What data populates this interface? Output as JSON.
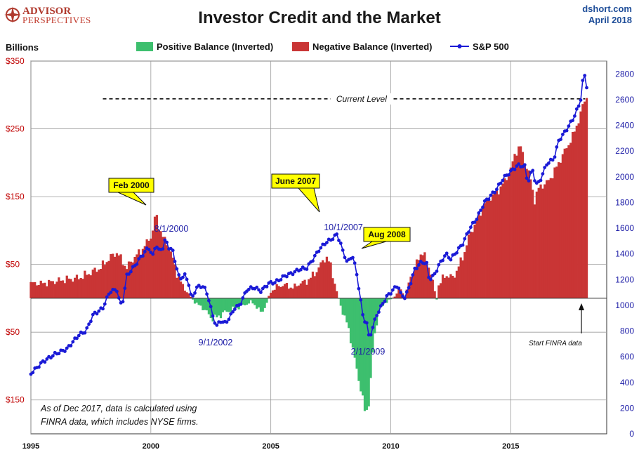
{
  "header": {
    "title": "Investor Credit and the Market",
    "source": "dshort.com",
    "date": "April 2018",
    "logo_line1": "ADVISOR",
    "logo_line2": "PERSPECTIVES"
  },
  "chart_data": {
    "type": "bar",
    "title": "Investor Credit and the Market",
    "ylabel_left": "Billions",
    "legend": [
      {
        "label": "Positive Balance (Inverted)",
        "color": "#3dbf6e",
        "marker": "box"
      },
      {
        "label": "Negative Balance (Inverted)",
        "color": "#c93535",
        "marker": "box"
      },
      {
        "label": "S&P 500",
        "color": "#1a1ad6",
        "marker": "line-dot"
      }
    ],
    "left_axis": {
      "ticks": [
        {
          "value": 350,
          "label": "$350"
        },
        {
          "value": 250,
          "label": "$250"
        },
        {
          "value": 150,
          "label": "$150"
        },
        {
          "value": 50,
          "label": "$50"
        },
        {
          "value": -50,
          "label": "$50"
        },
        {
          "value": -150,
          "label": "$150"
        }
      ],
      "ylim": [
        -200,
        350
      ]
    },
    "right_axis": {
      "ticks": [
        0,
        200,
        400,
        600,
        800,
        1000,
        1200,
        1400,
        1600,
        1800,
        2000,
        2200,
        2400,
        2600,
        2800
      ],
      "ylim": [
        0,
        2900
      ]
    },
    "x_axis": {
      "ticks": [
        {
          "value": 1995,
          "label": "1995"
        },
        {
          "value": 2000,
          "label": "2000"
        },
        {
          "value": 2005,
          "label": "2005"
        },
        {
          "value": 2010,
          "label": "2010"
        },
        {
          "value": 2015,
          "label": "2015"
        }
      ],
      "xlim": [
        1995,
        2019
      ]
    },
    "grid": true,
    "credit_balance_anchors": [
      [
        1995.0,
        22
      ],
      [
        1995.5,
        22
      ],
      [
        1996.0,
        25
      ],
      [
        1996.5,
        28
      ],
      [
        1997.0,
        30
      ],
      [
        1997.5,
        38
      ],
      [
        1997.9,
        45
      ],
      [
        1998.3,
        60
      ],
      [
        1998.6,
        68
      ],
      [
        1998.8,
        55
      ],
      [
        1999.0,
        45
      ],
      [
        1999.3,
        60
      ],
      [
        1999.6,
        70
      ],
      [
        1999.9,
        85
      ],
      [
        2000.1,
        100
      ],
      [
        2000.2,
        128
      ],
      [
        2000.3,
        110
      ],
      [
        2000.5,
        90
      ],
      [
        2000.7,
        80
      ],
      [
        2000.9,
        60
      ],
      [
        2001.1,
        35
      ],
      [
        2001.3,
        20
      ],
      [
        2001.5,
        10
      ],
      [
        2001.7,
        0
      ],
      [
        2001.9,
        -8
      ],
      [
        2002.2,
        -15
      ],
      [
        2002.5,
        -28
      ],
      [
        2002.7,
        -30
      ],
      [
        2003.0,
        -22
      ],
      [
        2003.3,
        -18
      ],
      [
        2003.6,
        -14
      ],
      [
        2003.9,
        -10
      ],
      [
        2004.2,
        -5
      ],
      [
        2004.4,
        -12
      ],
      [
        2004.6,
        -22
      ],
      [
        2004.8,
        -10
      ],
      [
        2005.0,
        10
      ],
      [
        2005.3,
        18
      ],
      [
        2005.6,
        20
      ],
      [
        2005.9,
        15
      ],
      [
        2006.2,
        22
      ],
      [
        2006.5,
        25
      ],
      [
        2006.8,
        35
      ],
      [
        2007.0,
        45
      ],
      [
        2007.3,
        62
      ],
      [
        2007.5,
        48
      ],
      [
        2007.8,
        2
      ],
      [
        2008.0,
        -20
      ],
      [
        2008.2,
        -40
      ],
      [
        2008.4,
        -70
      ],
      [
        2008.6,
        -110
      ],
      [
        2008.8,
        -140
      ],
      [
        2008.95,
        -175
      ],
      [
        2009.1,
        -150
      ],
      [
        2009.3,
        -60
      ],
      [
        2009.5,
        -20
      ],
      [
        2009.8,
        -5
      ],
      [
        2010.0,
        -2
      ],
      [
        2010.2,
        5
      ],
      [
        2010.4,
        15
      ],
      [
        2010.6,
        0
      ],
      [
        2010.8,
        30
      ],
      [
        2011.0,
        45
      ],
      [
        2011.3,
        70
      ],
      [
        2011.5,
        55
      ],
      [
        2011.7,
        35
      ],
      [
        2011.9,
        -5
      ],
      [
        2012.0,
        20
      ],
      [
        2012.3,
        35
      ],
      [
        2012.6,
        30
      ],
      [
        2012.8,
        45
      ],
      [
        2013.0,
        60
      ],
      [
        2013.3,
        95
      ],
      [
        2013.6,
        115
      ],
      [
        2013.9,
        140
      ],
      [
        2014.2,
        150
      ],
      [
        2014.5,
        160
      ],
      [
        2014.8,
        175
      ],
      [
        2015.0,
        190
      ],
      [
        2015.2,
        215
      ],
      [
        2015.4,
        225
      ],
      [
        2015.6,
        200
      ],
      [
        2015.8,
        180
      ],
      [
        2016.0,
        145
      ],
      [
        2016.2,
        165
      ],
      [
        2016.5,
        170
      ],
      [
        2016.8,
        185
      ],
      [
        2017.0,
        200
      ],
      [
        2017.3,
        220
      ],
      [
        2017.6,
        240
      ],
      [
        2017.9,
        270
      ],
      [
        2018.05,
        290
      ],
      [
        2018.2,
        300
      ]
    ],
    "sp500_anchors": [
      [
        1995.0,
        470
      ],
      [
        1995.5,
        560
      ],
      [
        1996.0,
        620
      ],
      [
        1996.5,
        660
      ],
      [
        1997.0,
        770
      ],
      [
        1997.3,
        800
      ],
      [
        1997.6,
        930
      ],
      [
        1997.8,
        950
      ],
      [
        1998.0,
        980
      ],
      [
        1998.3,
        1110
      ],
      [
        1998.6,
        1120
      ],
      [
        1998.7,
        1020
      ],
      [
        1998.8,
        1000
      ],
      [
        1999.0,
        1230
      ],
      [
        1999.3,
        1300
      ],
      [
        1999.6,
        1380
      ],
      [
        1999.9,
        1450
      ],
      [
        2000.1,
        1380
      ],
      [
        2000.2,
        1480
      ],
      [
        2000.35,
        1420
      ],
      [
        2000.5,
        1450
      ],
      [
        2000.6,
        1510
      ],
      [
        2000.75,
        1450
      ],
      [
        2000.9,
        1430
      ],
      [
        2001.0,
        1350
      ],
      [
        2001.2,
        1200
      ],
      [
        2001.4,
        1240
      ],
      [
        2001.6,
        1160
      ],
      [
        2001.7,
        1040
      ],
      [
        2001.9,
        1140
      ],
      [
        2002.2,
        1150
      ],
      [
        2002.4,
        1060
      ],
      [
        2002.6,
        900
      ],
      [
        2002.75,
        840
      ],
      [
        2002.9,
        880
      ],
      [
        2003.1,
        860
      ],
      [
        2003.3,
        910
      ],
      [
        2003.5,
        980
      ],
      [
        2003.7,
        1000
      ],
      [
        2004.0,
        1120
      ],
      [
        2004.3,
        1140
      ],
      [
        2004.6,
        1110
      ],
      [
        2004.9,
        1170
      ],
      [
        2005.2,
        1180
      ],
      [
        2005.6,
        1230
      ],
      [
        2005.9,
        1250
      ],
      [
        2006.2,
        1280
      ],
      [
        2006.5,
        1290
      ],
      [
        2006.8,
        1370
      ],
      [
        2007.0,
        1430
      ],
      [
        2007.3,
        1490
      ],
      [
        2007.5,
        1510
      ],
      [
        2007.75,
        1550
      ],
      [
        2007.9,
        1490
      ],
      [
        2008.0,
        1420
      ],
      [
        2008.2,
        1330
      ],
      [
        2008.4,
        1390
      ],
      [
        2008.55,
        1280
      ],
      [
        2008.7,
        1100
      ],
      [
        2008.85,
        900
      ],
      [
        2009.0,
        860
      ],
      [
        2009.1,
        740
      ],
      [
        2009.2,
        800
      ],
      [
        2009.4,
        920
      ],
      [
        2009.6,
        990
      ],
      [
        2009.8,
        1060
      ],
      [
        2010.0,
        1100
      ],
      [
        2010.3,
        1160
      ],
      [
        2010.4,
        1090
      ],
      [
        2010.6,
        1060
      ],
      [
        2010.8,
        1160
      ],
      [
        2011.0,
        1280
      ],
      [
        2011.3,
        1340
      ],
      [
        2011.5,
        1320
      ],
      [
        2011.6,
        1200
      ],
      [
        2011.8,
        1230
      ],
      [
        2012.0,
        1310
      ],
      [
        2012.3,
        1400
      ],
      [
        2012.5,
        1360
      ],
      [
        2012.8,
        1430
      ],
      [
        2013.0,
        1480
      ],
      [
        2013.3,
        1600
      ],
      [
        2013.6,
        1680
      ],
      [
        2013.9,
        1800
      ],
      [
        2014.1,
        1840
      ],
      [
        2014.4,
        1900
      ],
      [
        2014.7,
        1990
      ],
      [
        2015.0,
        2040
      ],
      [
        2015.3,
        2090
      ],
      [
        2015.6,
        2080
      ],
      [
        2015.7,
        1950
      ],
      [
        2015.9,
        2060
      ],
      [
        2016.05,
        1940
      ],
      [
        2016.2,
        1960
      ],
      [
        2016.5,
        2100
      ],
      [
        2016.8,
        2140
      ],
      [
        2017.0,
        2280
      ],
      [
        2017.3,
        2360
      ],
      [
        2017.6,
        2450
      ],
      [
        2017.9,
        2580
      ],
      [
        2018.05,
        2820
      ],
      [
        2018.15,
        2710
      ],
      [
        2018.22,
        2690
      ]
    ],
    "current_level": {
      "label": "Current Level",
      "value": 2606,
      "x_start": 1998,
      "x_end": 2018.1
    },
    "callouts": [
      {
        "label": "Feb 2000"
      },
      {
        "label": "June 2007"
      },
      {
        "label": "Aug 2008"
      }
    ],
    "point_labels": [
      {
        "label": "8/1/2000"
      },
      {
        "label": "10/1/2007"
      },
      {
        "label": "9/1/2002"
      },
      {
        "label": "2/1/2009"
      }
    ],
    "finra_note": "Start FINRA data",
    "footnote_lines": [
      "As of Dec 2017,  data is calculated using",
      "FINRA data, which includes NYSE firms."
    ],
    "colors": {
      "positive_bar": "#3dbf6e",
      "negative_bar": "#c93535",
      "sp500_line": "#1a1ad6",
      "callout_fill": "#ffff00"
    }
  }
}
